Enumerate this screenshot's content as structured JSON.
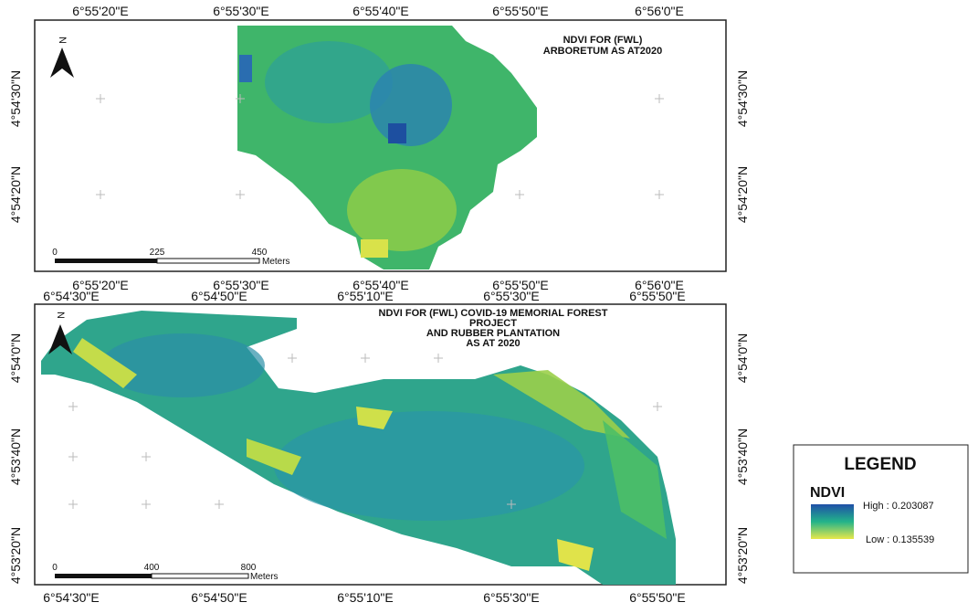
{
  "top_map": {
    "north": "N",
    "title": [
      "NDVI FOR (FWL)",
      "ARBORETUM AS AT2020"
    ],
    "x_labels": [
      "6°55'20\"E",
      "6°55'30\"E",
      "6°55'40\"E",
      "6°55'50\"E",
      "6°56'0\"E"
    ],
    "y_labels": [
      "4°54'30\"N",
      "4°54'20\"N"
    ],
    "scale": [
      "0",
      "225",
      "450",
      "Meters"
    ]
  },
  "bottom_map": {
    "north": "N",
    "title": [
      "NDVI FOR (FWL) COVID-19 MEMORIAL FOREST",
      "PROJECT",
      "AND RUBBER PLANTATION",
      "AS AT 2020"
    ],
    "x_labels": [
      "6°54'30\"E",
      "6°54'50\"E",
      "6°55'10\"E",
      "6°55'30\"E",
      "6°55'50\"E"
    ],
    "y_labels": [
      "4°54'0\"N",
      "4°53'40\"N",
      "4°53'20\"N"
    ],
    "scale": [
      "0",
      "400",
      "800",
      "Meters"
    ]
  },
  "legend": {
    "title": "LEGEND",
    "layer": "NDVI",
    "high": "High : 0.203087",
    "low": "Low : 0.135539"
  }
}
